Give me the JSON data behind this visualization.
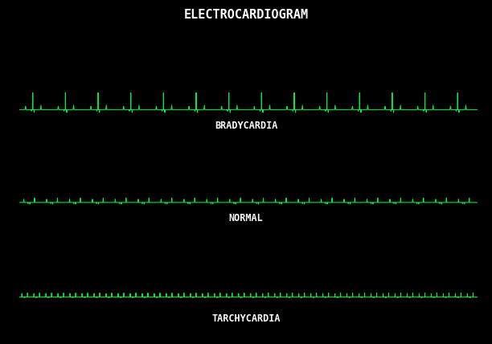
{
  "title": "ELECTROCARDIOGRAM",
  "title_bg_color": "#1a1acc",
  "title_text_color": "#ffffff",
  "bg_color": "#000000",
  "ecg_color": "#00ee44",
  "labels": [
    "BRADYCARDIA",
    "NORMAL",
    "TARCHYCARDIA"
  ],
  "label_color": "#ffffff",
  "fig_width": 6.12,
  "fig_height": 4.28,
  "dpi": 100,
  "strips": [
    {
      "beats": 14,
      "period": 0.72,
      "type": "brady",
      "r_amp": 0.3,
      "label_idx": 0
    },
    {
      "beats": 20,
      "period": 0.5,
      "type": "normal",
      "r_amp": 0.38,
      "label_idx": 1
    },
    {
      "beats": 38,
      "period": 0.27,
      "type": "tachy",
      "r_amp": 0.42,
      "label_idx": 2
    }
  ]
}
